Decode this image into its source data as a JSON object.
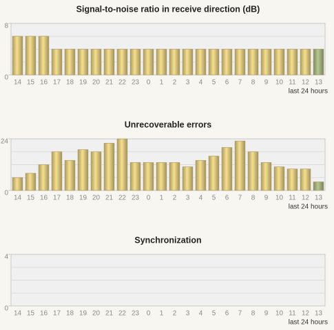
{
  "chart_data": [
    {
      "type": "bar",
      "title": "Signal-to-noise ratio in receive direction (dB)",
      "x_label": "last 24 hours",
      "categories": [
        "14",
        "15",
        "16",
        "17",
        "18",
        "19",
        "20",
        "21",
        "22",
        "23",
        "0",
        "1",
        "2",
        "3",
        "4",
        "5",
        "6",
        "7",
        "8",
        "9",
        "10",
        "11",
        "12",
        "13"
      ],
      "values": [
        6,
        6,
        6,
        4,
        4,
        4,
        4,
        4,
        4,
        4,
        4,
        4,
        4,
        4,
        4,
        4,
        4,
        4,
        4,
        4,
        4,
        4,
        4,
        4
      ],
      "colors": [
        "#d6c27a",
        "#d6c27a",
        "#d6c27a",
        "#d6c27a",
        "#d6c27a",
        "#d6c27a",
        "#d6c27a",
        "#d6c27a",
        "#d6c27a",
        "#d6c27a",
        "#d6c27a",
        "#d6c27a",
        "#d6c27a",
        "#d6c27a",
        "#d6c27a",
        "#d6c27a",
        "#d6c27a",
        "#d6c27a",
        "#d6c27a",
        "#d6c27a",
        "#d6c27a",
        "#d6c27a",
        "#d6c27a",
        "#9eae7c"
      ],
      "ylim": [
        0,
        8
      ],
      "yticks": [
        0,
        8
      ],
      "minor_yticks": [
        2,
        4,
        6
      ],
      "grid": true
    },
    {
      "type": "bar",
      "title": "Unrecoverable errors",
      "x_label": "last 24 hours",
      "categories": [
        "14",
        "15",
        "16",
        "17",
        "18",
        "19",
        "20",
        "21",
        "22",
        "23",
        "0",
        "1",
        "2",
        "3",
        "4",
        "5",
        "6",
        "7",
        "8",
        "9",
        "10",
        "11",
        "12",
        "13"
      ],
      "values": [
        6,
        8,
        12,
        18,
        14,
        19,
        18,
        22,
        24,
        13,
        13,
        13,
        13,
        11,
        14,
        16,
        20,
        23,
        18,
        13,
        11,
        10,
        10,
        4
      ],
      "colors": [
        "#d6c27a",
        "#d6c27a",
        "#d6c27a",
        "#d6c27a",
        "#d6c27a",
        "#d6c27a",
        "#d6c27a",
        "#d6c27a",
        "#d6c27a",
        "#d6c27a",
        "#d6c27a",
        "#d6c27a",
        "#d6c27a",
        "#d6c27a",
        "#d6c27a",
        "#d6c27a",
        "#d6c27a",
        "#d6c27a",
        "#d6c27a",
        "#d6c27a",
        "#d6c27a",
        "#d6c27a",
        "#d6c27a",
        "#9eae7c"
      ],
      "ylim": [
        0,
        24
      ],
      "yticks": [
        0,
        24
      ],
      "minor_yticks": [
        6,
        12,
        18
      ],
      "grid": true
    },
    {
      "type": "bar",
      "title": "Synchronization",
      "x_label": "last 24 hours",
      "categories": [
        "14",
        "15",
        "16",
        "17",
        "18",
        "19",
        "20",
        "21",
        "22",
        "23",
        "0",
        "1",
        "2",
        "3",
        "4",
        "5",
        "6",
        "7",
        "8",
        "9",
        "10",
        "11",
        "12",
        "13"
      ],
      "ylim": [
        0,
        4
      ],
      "yticks": [
        0,
        4
      ],
      "minor_yticks": [
        1,
        2,
        3
      ],
      "grid": true
    }
  ]
}
